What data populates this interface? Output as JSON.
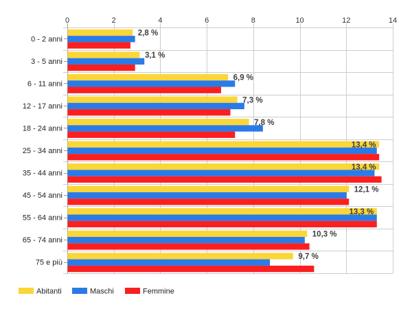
{
  "chart_data": {
    "type": "bar",
    "orientation": "horizontal",
    "title": "",
    "xlabel": "",
    "ylabel": "",
    "xlim": [
      0,
      14
    ],
    "x_ticks": [
      "0",
      "2",
      "4",
      "6",
      "8",
      "10",
      "12",
      "14"
    ],
    "grid": true,
    "legend_position": "bottom-left",
    "categories": [
      "0 - 2 anni",
      "3 - 5 anni",
      "6 - 11 anni",
      "12 - 17 anni",
      "18 - 24 anni",
      "25 - 34 anni",
      "35 - 44 anni",
      "45 - 54 anni",
      "55 - 64 anni",
      "65 - 74 anni",
      "75 e più"
    ],
    "series": [
      {
        "name": "Abitanti",
        "color": "#fbd638",
        "values": [
          2.8,
          3.1,
          6.9,
          7.3,
          7.8,
          13.4,
          13.4,
          12.1,
          13.3,
          10.3,
          9.7
        ]
      },
      {
        "name": "Maschi",
        "color": "#2a7be8",
        "values": [
          2.9,
          3.3,
          7.2,
          7.6,
          8.4,
          13.3,
          13.2,
          12.0,
          13.3,
          10.2,
          8.7
        ]
      },
      {
        "name": "Femmine",
        "color": "#fb1f1f",
        "values": [
          2.7,
          2.9,
          6.6,
          7.0,
          7.2,
          13.4,
          13.5,
          12.1,
          13.3,
          10.4,
          10.6
        ]
      }
    ],
    "data_labels": [
      "2,8 %",
      "3,1 %",
      "6,9 %",
      "7,3 %",
      "7,8 %",
      "13,4 %",
      "13,4 %",
      "12,1 %",
      "13,3 %",
      "10,3 %",
      "9,7 %"
    ]
  }
}
